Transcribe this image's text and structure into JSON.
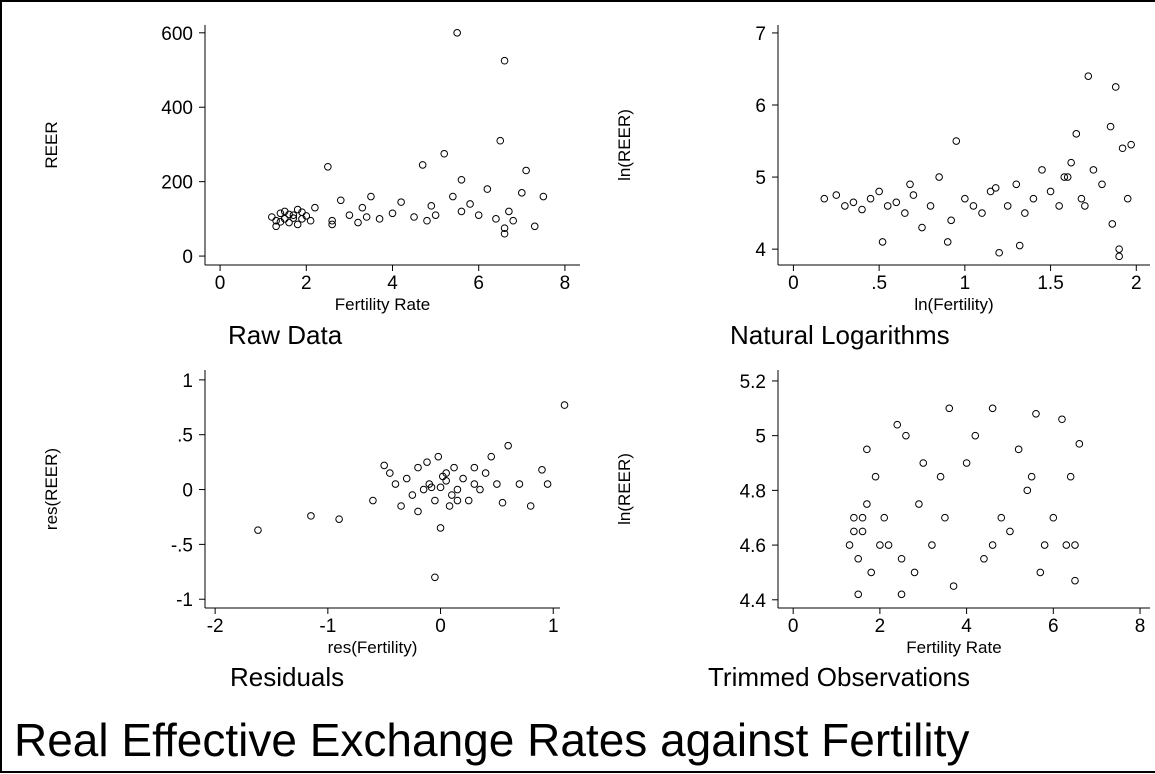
{
  "title": "Real Effective Exchange Rates against Fertility",
  "chart_data": [
    {
      "type": "scatter",
      "subtitle": "Raw Data",
      "xlabel": "Fertility Rate",
      "ylabel": "REER",
      "x": [
        1.2,
        1.3,
        1.4,
        1.5,
        1.5,
        1.6,
        1.7,
        1.8,
        1.8,
        1.9,
        2.0,
        2.1,
        1.3,
        1.6,
        1.9,
        2.2,
        2.5,
        2.6,
        2.8,
        3.0,
        3.2,
        3.3,
        3.5,
        3.7,
        4.0,
        4.2,
        4.5,
        4.7,
        4.9,
        5.0,
        5.2,
        5.4,
        5.5,
        5.6,
        5.8,
        6.0,
        6.2,
        6.4,
        6.5,
        6.6,
        6.6,
        6.7,
        6.8,
        7.0,
        7.1,
        7.3,
        2.6,
        3.4,
        4.8,
        5.6,
        6.6,
        7.5,
        1.4,
        1.7
      ],
      "y": [
        105,
        95,
        115,
        100,
        120,
        90,
        110,
        125,
        85,
        100,
        108,
        95,
        80,
        112,
        118,
        130,
        240,
        95,
        150,
        110,
        90,
        130,
        160,
        100,
        115,
        145,
        105,
        245,
        135,
        110,
        275,
        160,
        600,
        205,
        140,
        110,
        180,
        100,
        310,
        525,
        60,
        120,
        95,
        170,
        230,
        80,
        85,
        105,
        95,
        120,
        75,
        160,
        92,
        102
      ],
      "xlim": [
        -0.35,
        8.35
      ],
      "ylim": [
        -24,
        621
      ],
      "xticks": [
        0,
        2,
        4,
        6,
        8
      ],
      "yticks": [
        0,
        200,
        400,
        600
      ]
    },
    {
      "type": "scatter",
      "subtitle": "Natural Logarithms",
      "xlabel": "ln(Fertility)",
      "ylabel": "ln(REER)",
      "x": [
        0.18,
        0.25,
        0.3,
        0.35,
        0.4,
        0.45,
        0.5,
        0.55,
        0.6,
        0.65,
        0.7,
        0.75,
        0.8,
        0.85,
        0.9,
        0.95,
        1.0,
        1.05,
        1.1,
        1.15,
        1.2,
        1.25,
        1.3,
        1.35,
        1.4,
        1.45,
        1.5,
        1.55,
        1.6,
        1.62,
        1.65,
        1.68,
        1.72,
        1.75,
        1.8,
        1.85,
        1.88,
        1.9,
        1.9,
        1.92,
        1.95,
        1.97,
        0.52,
        0.68,
        0.92,
        1.18,
        1.32,
        1.58,
        1.7,
        1.86
      ],
      "y": [
        4.7,
        4.75,
        4.6,
        4.65,
        4.55,
        4.7,
        4.8,
        4.6,
        4.65,
        4.5,
        4.75,
        4.3,
        4.6,
        5.0,
        4.1,
        5.5,
        4.7,
        4.6,
        4.5,
        4.8,
        3.95,
        4.6,
        4.9,
        4.5,
        4.7,
        5.1,
        4.8,
        4.6,
        5.0,
        5.2,
        5.6,
        4.7,
        6.4,
        5.1,
        4.9,
        5.7,
        6.25,
        4.0,
        3.9,
        5.4,
        4.7,
        5.45,
        4.1,
        4.9,
        4.4,
        4.85,
        4.05,
        5.0,
        4.6,
        4.35
      ],
      "xlim": [
        -0.09,
        2.08
      ],
      "ylim": [
        3.78,
        7.11
      ],
      "xticks": [
        0,
        {
          "value": 0.5,
          "label": ".5"
        },
        1,
        1.5,
        2
      ],
      "yticks": [
        4,
        5,
        6,
        7
      ]
    },
    {
      "type": "scatter",
      "subtitle": "Residuals",
      "xlabel": "res(Fertility)",
      "ylabel": "res(REER)",
      "x": [
        -1.62,
        -1.15,
        -0.9,
        -0.6,
        -0.5,
        -0.4,
        -0.35,
        -0.3,
        -0.25,
        -0.2,
        -0.15,
        -0.1,
        -0.05,
        0,
        0.05,
        0.1,
        0.15,
        0.2,
        0.25,
        0.3,
        -0.02,
        0.0,
        0.08,
        -0.12,
        0.12,
        0.35,
        0.4,
        0.45,
        0.5,
        0.55,
        0.6,
        0.7,
        0.8,
        0.9,
        0.95,
        1.1,
        -0.05,
        -0.45,
        0.3,
        0.15,
        -0.2,
        0.05,
        0.02,
        -0.08
      ],
      "y": [
        -0.37,
        -0.24,
        -0.27,
        -0.1,
        0.22,
        0.05,
        -0.15,
        0.1,
        -0.05,
        0.2,
        0.0,
        0.05,
        -0.1,
        0.02,
        0.15,
        -0.05,
        0.0,
        0.1,
        -0.1,
        0.05,
        0.3,
        -0.35,
        -0.15,
        0.25,
        0.2,
        0.0,
        0.15,
        0.3,
        0.05,
        -0.12,
        0.4,
        0.05,
        -0.15,
        0.18,
        0.05,
        0.77,
        -0.8,
        0.15,
        0.2,
        -0.1,
        -0.2,
        0.08,
        0.12,
        0.02
      ],
      "xlim": [
        -2.09,
        1.06
      ],
      "ylim": [
        -1.08,
        1.09
      ],
      "xticks": [
        -2,
        -1,
        0,
        1
      ],
      "yticks": [
        -1,
        {
          "value": -0.5,
          "label": "-.5"
        },
        0,
        {
          "value": 0.5,
          "label": ".5"
        },
        1
      ]
    },
    {
      "type": "scatter",
      "subtitle": "Trimmed Observations",
      "xlabel": "Fertility Rate",
      "ylabel": "ln(REER)",
      "x": [
        1.3,
        1.4,
        1.5,
        1.6,
        1.7,
        1.8,
        1.9,
        2.0,
        1.5,
        1.7,
        2.1,
        2.2,
        2.4,
        2.5,
        2.6,
        2.8,
        3.0,
        3.2,
        3.4,
        3.5,
        3.7,
        4.0,
        4.2,
        4.4,
        4.6,
        4.8,
        5.0,
        5.2,
        5.4,
        5.6,
        5.8,
        6.0,
        6.2,
        6.4,
        6.5,
        6.6,
        2.5,
        3.6,
        4.6,
        5.7,
        6.3,
        1.6,
        1.4,
        2.9,
        5.5,
        6.5
      ],
      "y": [
        4.6,
        4.7,
        4.55,
        4.65,
        4.75,
        4.5,
        4.85,
        4.6,
        4.42,
        4.95,
        4.7,
        4.6,
        5.04,
        4.55,
        5.0,
        4.5,
        4.9,
        4.6,
        4.85,
        4.7,
        4.45,
        4.9,
        5.0,
        4.55,
        5.1,
        4.7,
        4.65,
        4.95,
        4.8,
        5.08,
        4.6,
        4.7,
        5.06,
        4.85,
        4.47,
        4.97,
        4.42,
        5.1,
        4.6,
        4.5,
        4.6,
        4.7,
        4.65,
        4.75,
        4.85,
        4.6
      ],
      "xlim": [
        -0.35,
        8.23
      ],
      "ylim": [
        4.37,
        5.24
      ],
      "xticks": [
        0,
        2,
        4,
        6,
        8
      ],
      "yticks": [
        4.4,
        4.6,
        4.8,
        5,
        5.2
      ]
    }
  ]
}
